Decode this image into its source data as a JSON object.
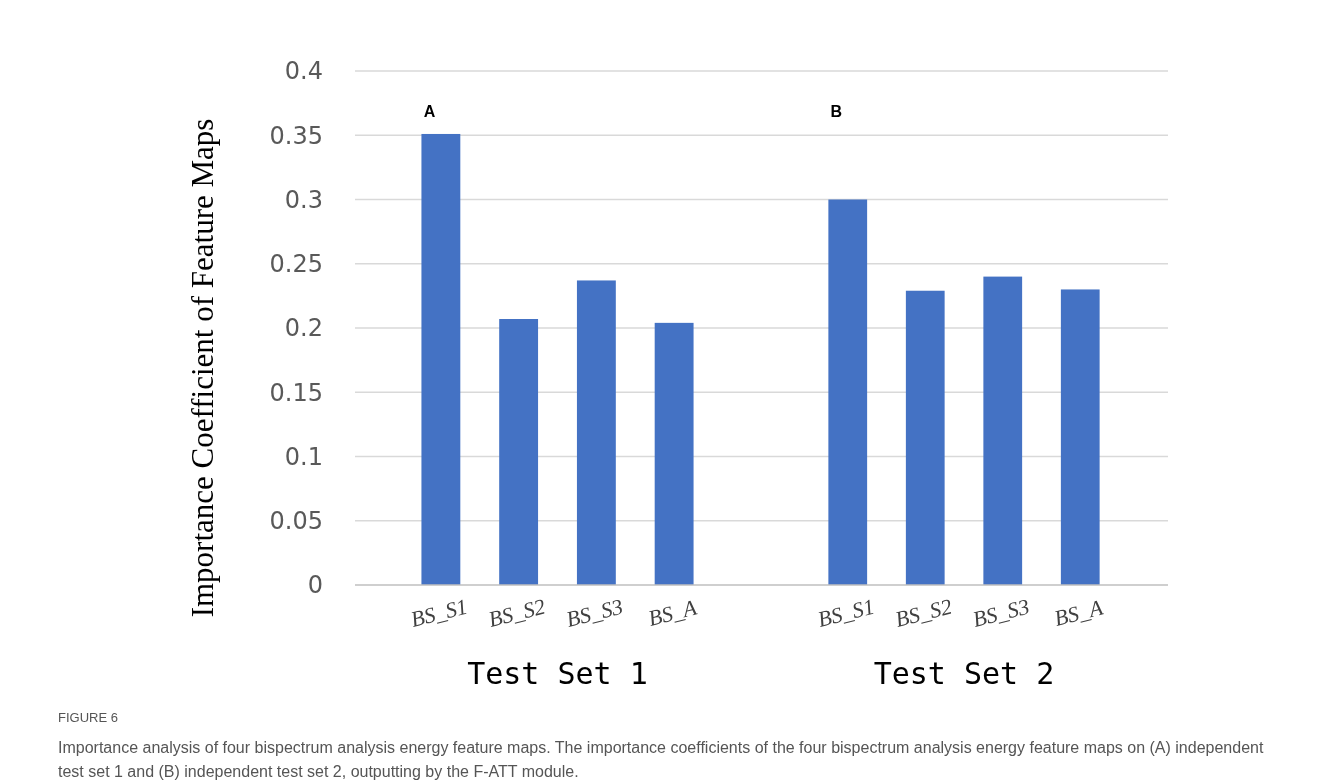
{
  "chart_data": [
    {
      "type": "bar",
      "categories": [
        "BS_S1",
        "BS_S2",
        "BS_S3",
        "BS_A"
      ],
      "values": [
        0.351,
        0.207,
        0.237,
        0.204
      ],
      "color": "#4472c4",
      "ylim": [
        0,
        0.4
      ],
      "yticks": [
        0,
        0.05,
        0.1,
        0.15,
        0.2,
        0.25,
        0.3,
        0.35,
        0.4
      ],
      "grid": "y",
      "ylabel": "Importance Coefficient of Feature Maps",
      "xlabel": "Test Set 1",
      "annotations": [
        "A",
        "FIGURE 6",
        "Importance analysis of four bispectrum analysis energy feature maps. The importance coefficients of the four bispectrum analysis energy feature maps on (A) independent test set 1 and (B) independent test set 2, outputting by the F-ATT module."
      ]
    },
    {
      "type": "bar",
      "categories": [
        "BS_S1",
        "BS_S2",
        "BS_S3",
        "BS_A"
      ],
      "values": [
        0.3,
        0.229,
        0.24,
        0.23
      ],
      "color": "#4472c4",
      "ylim": [
        0,
        0.4
      ],
      "grid": "y",
      "tick_labels": "x",
      "xlabel": "Test Set 2",
      "annotations": [
        "B"
      ]
    }
  ]
}
